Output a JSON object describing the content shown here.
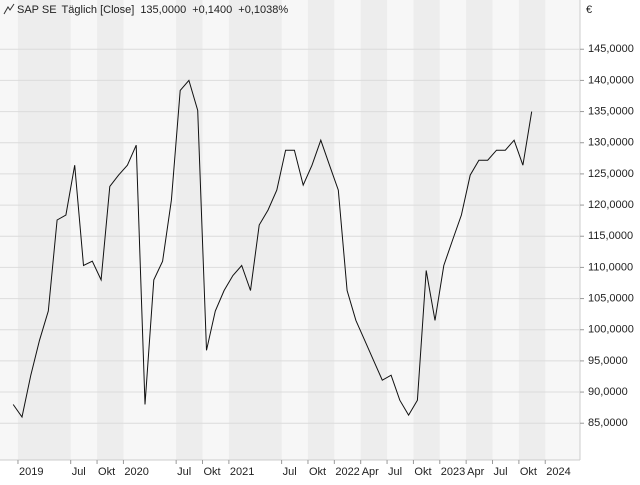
{
  "chart_data": {
    "type": "line",
    "title": "SAP SE",
    "subtitle": "Täglich [Close]",
    "annotations": [
      {
        "text": "135,0000",
        "color": "#2e9e2e"
      },
      {
        "text": "+0,1400",
        "color": "#2e9e2e"
      },
      {
        "text": "+0,1038%",
        "color": "#2e9e2e"
      }
    ],
    "y_unit": "€",
    "x": [
      "2018-12",
      "2019-01",
      "2019-02",
      "2019-03",
      "2019-04",
      "2019-05",
      "2019-06",
      "2019-07",
      "2019-08",
      "2019-09",
      "2019-10",
      "2019-11",
      "2019-12",
      "2020-01",
      "2020-02",
      "2020-03",
      "2020-04",
      "2020-05",
      "2020-06",
      "2020-07",
      "2020-08",
      "2020-09",
      "2020-10",
      "2020-11",
      "2020-12",
      "2021-01",
      "2021-02",
      "2021-03",
      "2021-04",
      "2021-05",
      "2021-06",
      "2021-07",
      "2021-08",
      "2021-09",
      "2021-10",
      "2021-11",
      "2021-12",
      "2022-01",
      "2022-02",
      "2022-03",
      "2022-04",
      "2022-05",
      "2022-06",
      "2022-07",
      "2022-08",
      "2022-09",
      "2022-10",
      "2022-11",
      "2022-12",
      "2023-01",
      "2023-02",
      "2023-03",
      "2023-04",
      "2023-05",
      "2023-06",
      "2023-07",
      "2023-08",
      "2023-09",
      "2023-10",
      "2023-11"
    ],
    "series": [
      {
        "name": "SAP SE",
        "color": "#111111",
        "values": [
          88,
          86,
          92.7,
          98.3,
          103,
          117.6,
          118.4,
          126.4,
          110.3,
          111,
          108,
          123,
          124.8,
          126.4,
          129.6,
          88,
          108,
          111,
          120.8,
          138.4,
          140,
          135.2,
          96.7,
          103,
          106.3,
          108.7,
          110.3,
          106.3,
          116.8,
          119.2,
          122.4,
          128.8,
          128.8,
          123.2,
          126.4,
          130.4,
          126.4,
          122.4,
          106.3,
          101.5,
          98.3,
          95.1,
          91.9,
          92.7,
          88.7,
          86.3,
          88.7,
          109.5,
          101.5,
          110.3,
          114.4,
          118.4,
          124.8,
          127.2,
          127.2,
          128.8,
          128.8,
          130.4,
          126.4,
          135
        ]
      }
    ],
    "xlim": [
      "2018-11",
      "2024-05"
    ],
    "xticks": [
      {
        "value": "2019-01",
        "label": "2019"
      },
      {
        "value": "2019-07",
        "label": "Jul"
      },
      {
        "value": "2019-10",
        "label": "Okt"
      },
      {
        "value": "2020-01",
        "label": "2020"
      },
      {
        "value": "2020-07",
        "label": "Jul"
      },
      {
        "value": "2020-10",
        "label": "Okt"
      },
      {
        "value": "2021-01",
        "label": "2021"
      },
      {
        "value": "2021-07",
        "label": "Jul"
      },
      {
        "value": "2021-10",
        "label": "Okt"
      },
      {
        "value": "2022-01",
        "label": "2022"
      },
      {
        "value": "2022-04",
        "label": "Apr"
      },
      {
        "value": "2022-07",
        "label": "Jul"
      },
      {
        "value": "2022-10",
        "label": "Okt"
      },
      {
        "value": "2023-01",
        "label": "2023"
      },
      {
        "value": "2023-04",
        "label": "Apr"
      },
      {
        "value": "2023-07",
        "label": "Jul"
      },
      {
        "value": "2023-10",
        "label": "Okt"
      },
      {
        "value": "2024-01",
        "label": "2024"
      }
    ],
    "ylim": [
      79.1,
      152.9
    ],
    "yticks": [
      {
        "value": 85,
        "label": "85,0000"
      },
      {
        "value": 90,
        "label": "90,0000"
      },
      {
        "value": 95,
        "label": "95,0000"
      },
      {
        "value": 100,
        "label": "100,0000"
      },
      {
        "value": 105,
        "label": "105,0000"
      },
      {
        "value": 110,
        "label": "110,0000"
      },
      {
        "value": 115,
        "label": "115,0000"
      },
      {
        "value": 120,
        "label": "120,0000"
      },
      {
        "value": 125,
        "label": "125,0000"
      },
      {
        "value": 130,
        "label": "130,0000"
      },
      {
        "value": 135,
        "label": "135,0000"
      },
      {
        "value": 140,
        "label": "140,0000"
      },
      {
        "value": 145,
        "label": "145,0000"
      }
    ],
    "grid": true
  }
}
